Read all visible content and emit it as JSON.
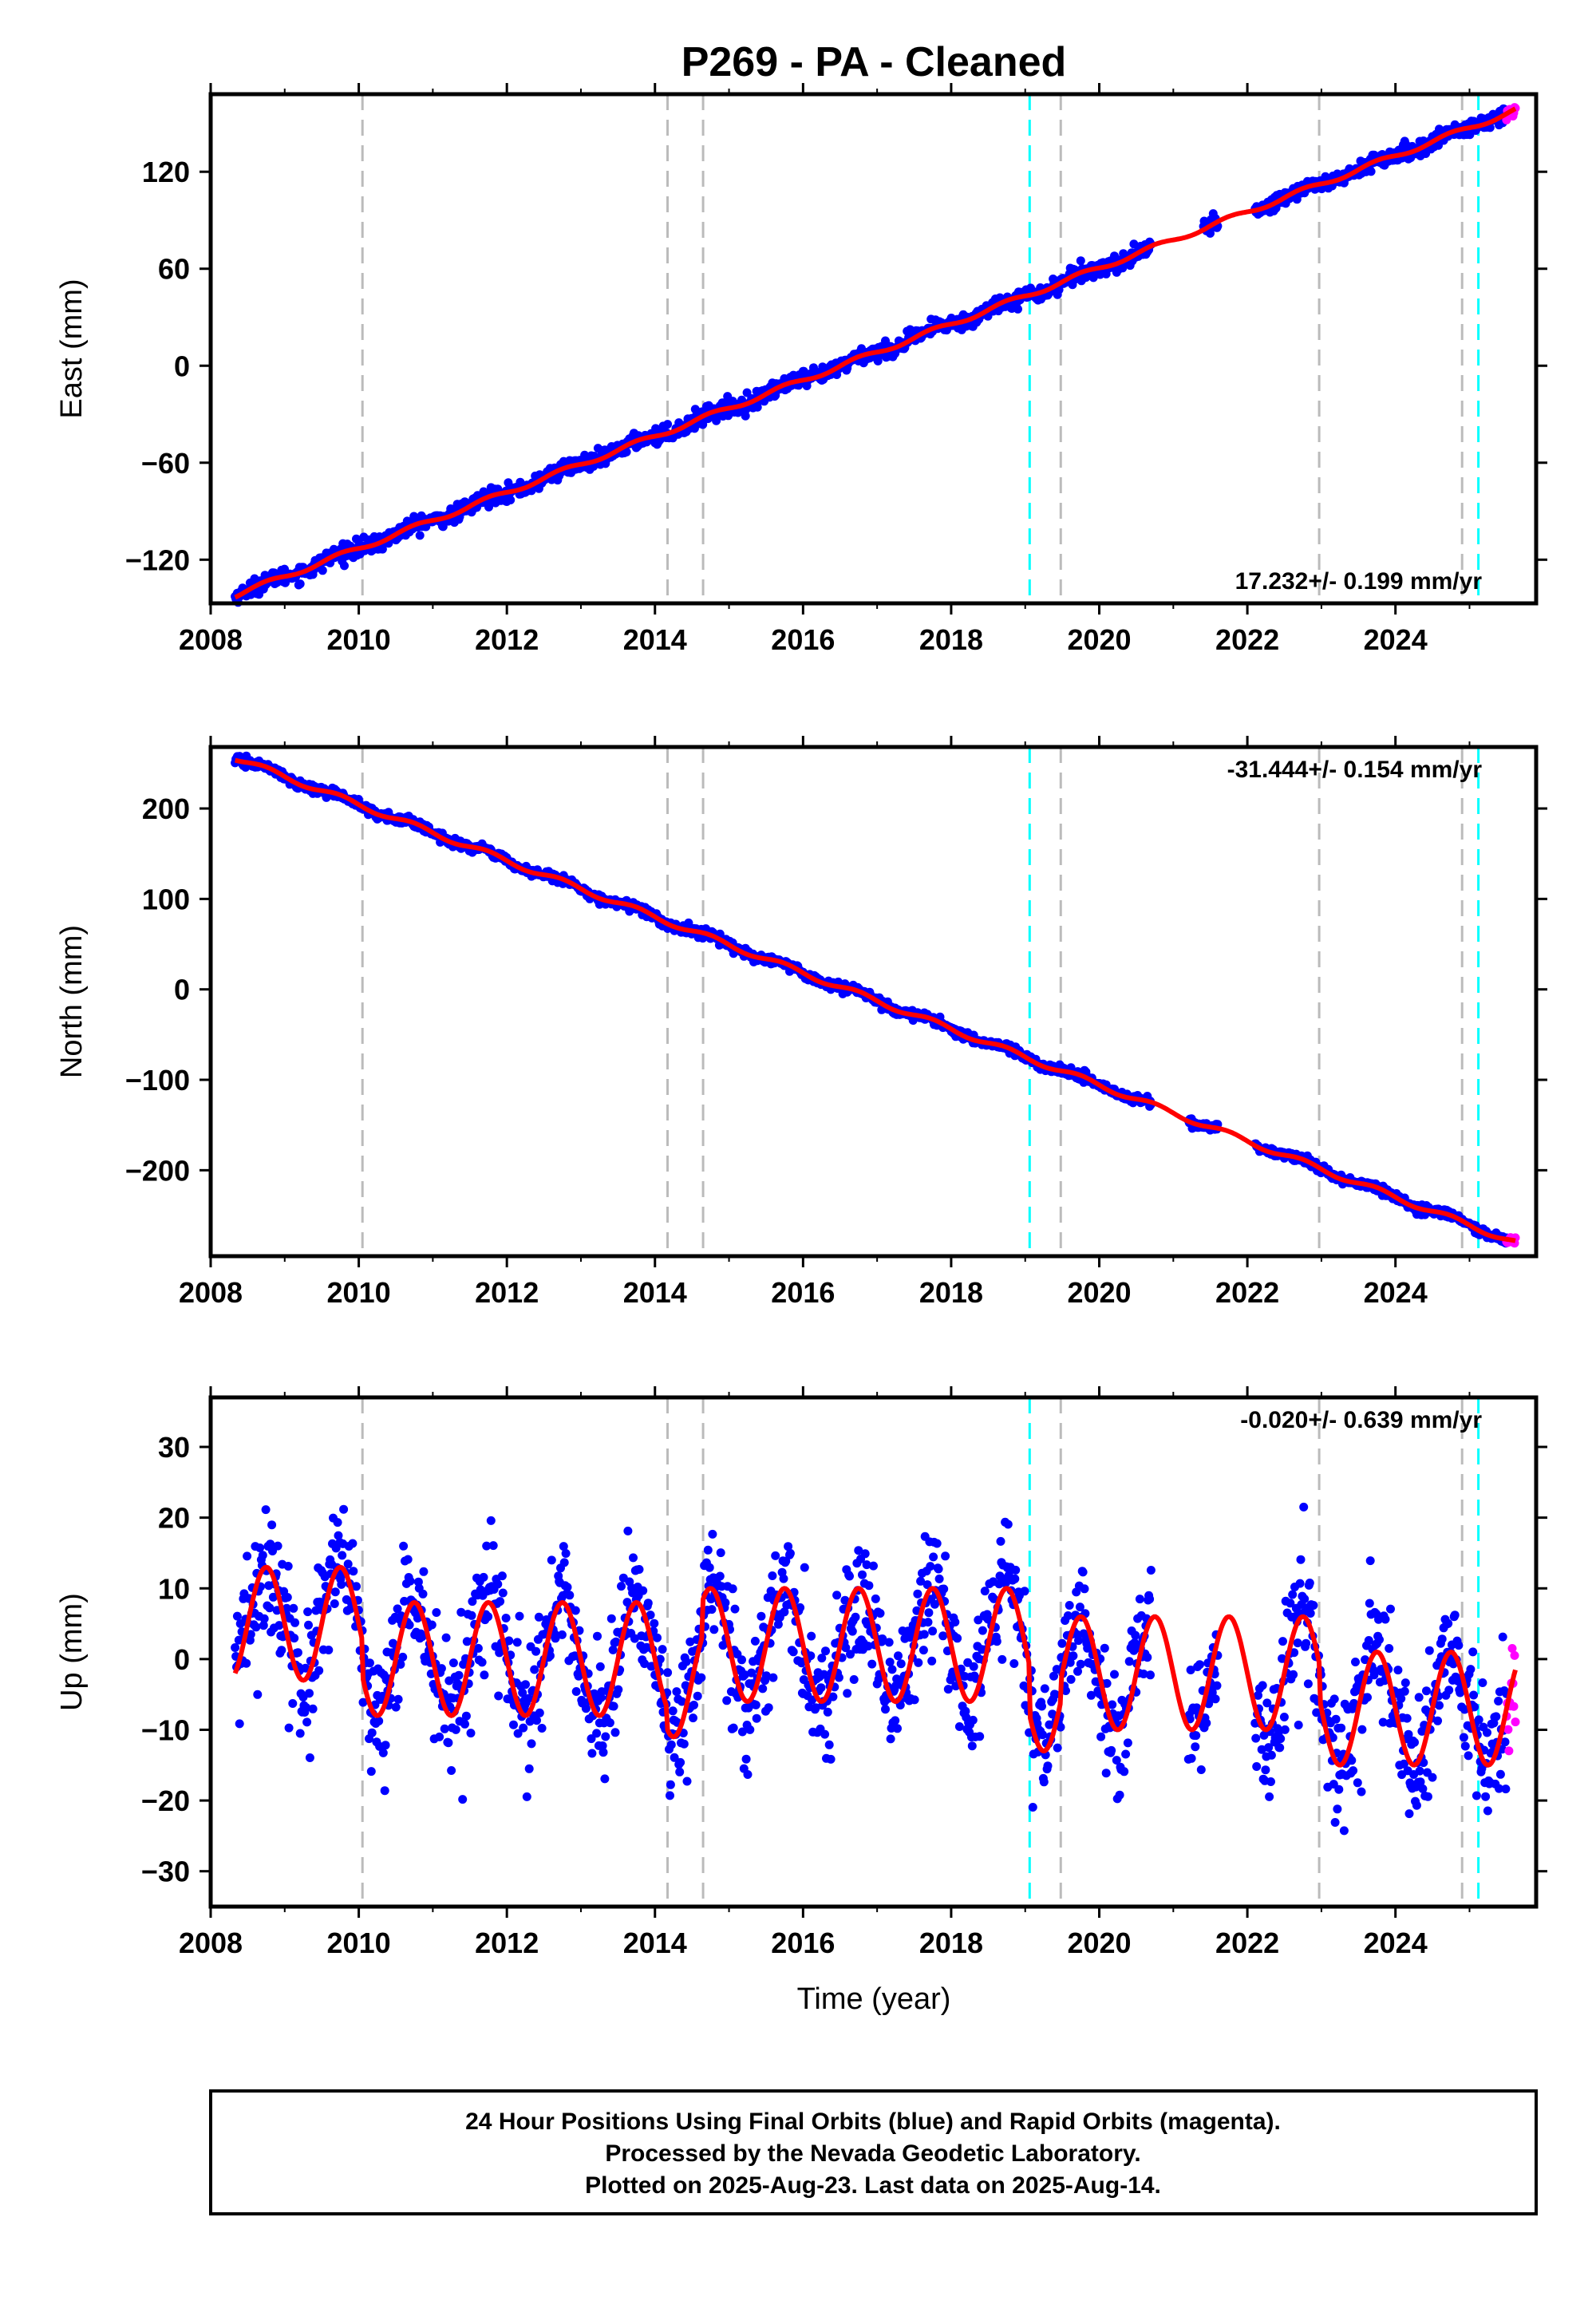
{
  "title": "P269  - PA - Cleaned",
  "chart_data": [
    {
      "type": "scatter",
      "ylabel": "East (mm)",
      "rate": "17.232+/- 0.199 mm/yr",
      "rate_position": "bottom-right",
      "xlim": [
        2008.0,
        2025.9
      ],
      "ylim": [
        -147,
        168
      ],
      "xticks": [
        2008,
        2010,
        2012,
        2014,
        2016,
        2018,
        2020,
        2022,
        2024
      ],
      "yticks": [
        -120,
        -60,
        0,
        60,
        120
      ],
      "model": {
        "start": 2008.33,
        "end": 2025.62,
        "y_start": -142,
        "y_end": 158,
        "annual_amp": 1.5,
        "scatter": 2.5
      },
      "equipment_changes": [
        2010.05,
        2014.17,
        2014.65,
        2019.48,
        2022.97,
        2024.9
      ],
      "earthquakes": [
        2019.06,
        2025.12
      ],
      "gaps": [
        [
          2020.7,
          2021.4
        ],
        [
          2021.6,
          2022.1
        ]
      ],
      "rapid": {
        "start": 2025.5,
        "end": 2025.62
      }
    },
    {
      "type": "scatter",
      "ylabel": "North (mm)",
      "rate": "-31.444+/- 0.154 mm/yr",
      "rate_position": "top-right",
      "xlim": [
        2008.0,
        2025.9
      ],
      "ylim": [
        -295,
        268
      ],
      "xticks": [
        2008,
        2010,
        2012,
        2014,
        2016,
        2018,
        2020,
        2022,
        2024
      ],
      "yticks": [
        -200,
        -100,
        0,
        100,
        200
      ],
      "model": {
        "start": 2008.33,
        "end": 2025.62,
        "y_start": 256,
        "y_end": -280,
        "annual_amp": 3,
        "scatter": 2.5
      },
      "equipment_changes": [
        2010.05,
        2014.17,
        2014.65,
        2019.48,
        2022.97,
        2024.9
      ],
      "earthquakes": [
        2019.06,
        2025.12
      ],
      "gaps": [
        [
          2020.7,
          2021.2
        ],
        [
          2021.6,
          2022.1
        ]
      ],
      "rapid": {
        "start": 2025.5,
        "end": 2025.62
      }
    },
    {
      "type": "scatter",
      "ylabel": "Up (mm)",
      "xlabel": "Time (year)",
      "rate": "-0.020+/- 0.639 mm/yr",
      "rate_position": "top-right",
      "xlim": [
        2008.0,
        2025.9
      ],
      "ylim": [
        -35,
        37
      ],
      "xticks": [
        2008,
        2010,
        2012,
        2014,
        2016,
        2018,
        2020,
        2022,
        2024
      ],
      "yticks": [
        -30,
        -20,
        -10,
        0,
        10,
        20,
        30
      ],
      "model": {
        "start": 2008.33,
        "end": 2025.62,
        "annual_amp": 8,
        "scatter": 4.5
      },
      "offsets": [
        {
          "from": 2008.33,
          "to": 2010.05,
          "level": 5
        },
        {
          "from": 2010.05,
          "to": 2014.17,
          "level": 0
        },
        {
          "from": 2014.17,
          "to": 2014.65,
          "level": -3
        },
        {
          "from": 2014.65,
          "to": 2019.06,
          "level": 2
        },
        {
          "from": 2019.06,
          "to": 2019.48,
          "level": -5
        },
        {
          "from": 2019.48,
          "to": 2022.97,
          "level": -2
        },
        {
          "from": 2022.97,
          "to": 2024.9,
          "level": -7
        },
        {
          "from": 2024.9,
          "to": 2025.62,
          "level": -7
        }
      ],
      "equipment_changes": [
        2010.05,
        2014.17,
        2014.65,
        2019.48,
        2022.97,
        2024.9
      ],
      "earthquakes": [
        2019.06,
        2025.12
      ],
      "gaps": [
        [
          2020.7,
          2021.2
        ],
        [
          2021.6,
          2022.1
        ]
      ],
      "rapid": {
        "start": 2025.5,
        "end": 2025.62
      }
    }
  ],
  "footer": {
    "line1": "24 Hour Positions Using Final Orbits (blue) and Rapid Orbits (magenta).",
    "line2": "Processed by the Nevada Geodetic Laboratory.",
    "line3": "Plotted on 2025-Aug-23. Last data on 2025-Aug-14."
  },
  "colors": {
    "final_points": "#0000ff",
    "rapid_points": "#ff00ff",
    "model_line": "#ff0000",
    "equipment_change": "#bbbbbb",
    "earthquake": "#00ffff"
  }
}
